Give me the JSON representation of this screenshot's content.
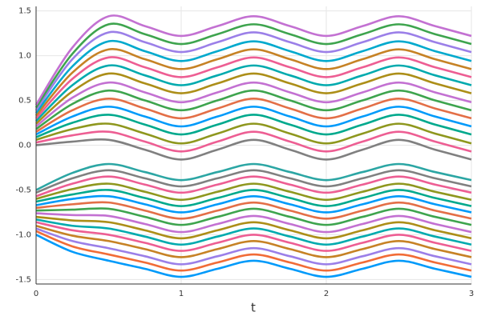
{
  "chart_data": {
    "type": "line",
    "xlabel": "t",
    "x": [
      0,
      0.25,
      0.5,
      0.75,
      1,
      1.25,
      1.5,
      1.75,
      2,
      2.25,
      2.5,
      2.75,
      3
    ],
    "xlim": [
      0,
      3
    ],
    "ylim": [
      -1.55,
      1.55
    ],
    "xticks": [
      0,
      1,
      2,
      3
    ],
    "yticks": [
      -1.5,
      {
        "value": -1,
        "label": "-1.0"
      },
      -0.5,
      {
        "value": 0,
        "label": "0.0"
      },
      0.5,
      {
        "value": 1,
        "label": "1.0"
      },
      1.5
    ],
    "grid": true,
    "series": [
      {
        "color": "#808080",
        "values": [
          0,
          0.04,
          0.06,
          -0.05,
          -0.16,
          -0.05,
          0.06,
          -0.05,
          -0.16,
          -0.05,
          0.06,
          -0.05,
          -0.16
        ]
      },
      {
        "color": "#ed5e93",
        "values": [
          0.03,
          0.11,
          0.15,
          0.04,
          -0.07,
          0.04,
          0.15,
          0.04,
          -0.07,
          0.04,
          0.15,
          0.04,
          -0.07
        ]
      },
      {
        "color": "#8e971e",
        "values": [
          0.06,
          0.18,
          0.24,
          0.13,
          0.02,
          0.13,
          0.24,
          0.13,
          0.02,
          0.13,
          0.24,
          0.13,
          0.02
        ]
      },
      {
        "color": "#00a98d",
        "values": [
          0.09,
          0.25,
          0.34,
          0.23,
          0.12,
          0.23,
          0.34,
          0.23,
          0.12,
          0.23,
          0.34,
          0.23,
          0.12
        ]
      },
      {
        "color": "#009afa",
        "values": [
          0.12,
          0.32,
          0.43,
          0.32,
          0.21,
          0.32,
          0.43,
          0.32,
          0.21,
          0.32,
          0.43,
          0.32,
          0.21
        ]
      },
      {
        "color": "#e36f47",
        "values": [
          0.15,
          0.39,
          0.52,
          0.41,
          0.3,
          0.41,
          0.52,
          0.41,
          0.3,
          0.41,
          0.52,
          0.41,
          0.3
        ]
      },
      {
        "color": "#3ea44e",
        "values": [
          0.18,
          0.46,
          0.61,
          0.5,
          0.39,
          0.5,
          0.61,
          0.5,
          0.39,
          0.5,
          0.61,
          0.5,
          0.39
        ]
      },
      {
        "color": "#c371d2",
        "values": [
          0.21,
          0.53,
          0.7,
          0.59,
          0.48,
          0.59,
          0.7,
          0.59,
          0.48,
          0.59,
          0.7,
          0.59,
          0.48
        ]
      },
      {
        "color": "#ac8e18",
        "values": [
          0.24,
          0.6,
          0.8,
          0.69,
          0.58,
          0.69,
          0.8,
          0.69,
          0.58,
          0.69,
          0.8,
          0.69,
          0.58
        ]
      },
      {
        "color": "#00aaae",
        "values": [
          0.27,
          0.67,
          0.89,
          0.78,
          0.67,
          0.78,
          0.89,
          0.78,
          0.67,
          0.78,
          0.89,
          0.78,
          0.67
        ]
      },
      {
        "color": "#ed5e93",
        "values": [
          0.3,
          0.74,
          0.98,
          0.87,
          0.76,
          0.87,
          0.98,
          0.87,
          0.76,
          0.87,
          0.98,
          0.87,
          0.76
        ]
      },
      {
        "color": "#c68225",
        "values": [
          0.33,
          0.81,
          1.07,
          0.96,
          0.85,
          0.96,
          1.07,
          0.96,
          0.85,
          0.96,
          1.07,
          0.96,
          0.85
        ]
      },
      {
        "color": "#00a9cd",
        "values": [
          0.36,
          0.88,
          1.16,
          1.05,
          0.94,
          1.05,
          1.16,
          1.05,
          0.94,
          1.05,
          1.16,
          1.05,
          0.94
        ]
      },
      {
        "color": "#9b7fe8",
        "values": [
          0.39,
          0.96,
          1.26,
          1.15,
          1.04,
          1.15,
          1.26,
          1.15,
          1.04,
          1.15,
          1.26,
          1.15,
          1.04
        ]
      },
      {
        "color": "#3ea44e",
        "values": [
          0.42,
          1.02,
          1.35,
          1.24,
          1.13,
          1.24,
          1.35,
          1.24,
          1.13,
          1.24,
          1.35,
          1.24,
          1.13
        ]
      },
      {
        "color": "#c371d2",
        "values": [
          0.45,
          1.09,
          1.44,
          1.33,
          1.22,
          1.33,
          1.44,
          1.33,
          1.22,
          1.33,
          1.44,
          1.33,
          1.22
        ]
      },
      {
        "color": "#2ca6a4",
        "values": [
          -0.5,
          -0.31,
          -0.21,
          -0.3,
          -0.39,
          -0.3,
          -0.21,
          -0.3,
          -0.39,
          -0.3,
          -0.21,
          -0.3,
          -0.39
        ]
      },
      {
        "color": "#808080",
        "values": [
          -0.53,
          -0.37,
          -0.28,
          -0.37,
          -0.46,
          -0.37,
          -0.28,
          -0.37,
          -0.46,
          -0.37,
          -0.28,
          -0.37,
          -0.46
        ]
      },
      {
        "color": "#ed5e93",
        "values": [
          -0.57,
          -0.43,
          -0.35,
          -0.44,
          -0.53,
          -0.44,
          -0.35,
          -0.44,
          -0.53,
          -0.44,
          -0.35,
          -0.44,
          -0.53
        ]
      },
      {
        "color": "#8e971e",
        "values": [
          -0.6,
          -0.49,
          -0.43,
          -0.52,
          -0.61,
          -0.52,
          -0.43,
          -0.52,
          -0.61,
          -0.52,
          -0.43,
          -0.52,
          -0.61
        ]
      },
      {
        "color": "#00a98d",
        "values": [
          -0.63,
          -0.55,
          -0.5,
          -0.59,
          -0.68,
          -0.59,
          -0.5,
          -0.59,
          -0.68,
          -0.59,
          -0.5,
          -0.59,
          -0.68
        ]
      },
      {
        "color": "#009afa",
        "values": [
          -0.67,
          -0.6,
          -0.57,
          -0.66,
          -0.75,
          -0.66,
          -0.57,
          -0.66,
          -0.75,
          -0.66,
          -0.57,
          -0.66,
          -0.75
        ]
      },
      {
        "color": "#e36f47",
        "values": [
          -0.7,
          -0.66,
          -0.64,
          -0.73,
          -0.82,
          -0.73,
          -0.64,
          -0.73,
          -0.82,
          -0.73,
          -0.64,
          -0.73,
          -0.82
        ]
      },
      {
        "color": "#3ea44e",
        "values": [
          -0.73,
          -0.72,
          -0.71,
          -0.8,
          -0.89,
          -0.8,
          -0.71,
          -0.8,
          -0.89,
          -0.8,
          -0.71,
          -0.8,
          -0.89
        ]
      },
      {
        "color": "#c371d2",
        "values": [
          -0.76,
          -0.78,
          -0.79,
          -0.88,
          -0.97,
          -0.88,
          -0.79,
          -0.88,
          -0.97,
          -0.88,
          -0.79,
          -0.88,
          -0.97
        ]
      },
      {
        "color": "#ac8e18",
        "values": [
          -0.8,
          -0.84,
          -0.86,
          -0.95,
          -1.04,
          -0.95,
          -0.86,
          -0.95,
          -1.04,
          -0.95,
          -0.86,
          -0.95,
          -1.04
        ]
      },
      {
        "color": "#00aaae",
        "values": [
          -0.83,
          -0.9,
          -0.93,
          -1.02,
          -1.11,
          -1.02,
          -0.93,
          -1.02,
          -1.11,
          -1.02,
          -0.93,
          -1.02,
          -1.11
        ]
      },
      {
        "color": "#ed5e93",
        "values": [
          -0.86,
          -0.95,
          -1.0,
          -1.09,
          -1.18,
          -1.09,
          -1.0,
          -1.09,
          -1.18,
          -1.09,
          -1.0,
          -1.09,
          -1.18
        ]
      },
      {
        "color": "#c68225",
        "values": [
          -0.9,
          -1.01,
          -1.07,
          -1.16,
          -1.25,
          -1.16,
          -1.07,
          -1.16,
          -1.25,
          -1.16,
          -1.07,
          -1.16,
          -1.25
        ]
      },
      {
        "color": "#9b7fe8",
        "values": [
          -0.93,
          -1.07,
          -1.15,
          -1.24,
          -1.33,
          -1.24,
          -1.15,
          -1.24,
          -1.33,
          -1.24,
          -1.15,
          -1.24,
          -1.33
        ]
      },
      {
        "color": "#f16c37",
        "values": [
          -0.96,
          -1.13,
          -1.22,
          -1.31,
          -1.4,
          -1.31,
          -1.22,
          -1.31,
          -1.4,
          -1.31,
          -1.22,
          -1.31,
          -1.4
        ]
      },
      {
        "color": "#009afa",
        "values": [
          -1.0,
          -1.19,
          -1.29,
          -1.38,
          -1.47,
          -1.38,
          -1.29,
          -1.38,
          -1.47,
          -1.38,
          -1.29,
          -1.38,
          -1.47
        ]
      }
    ]
  }
}
